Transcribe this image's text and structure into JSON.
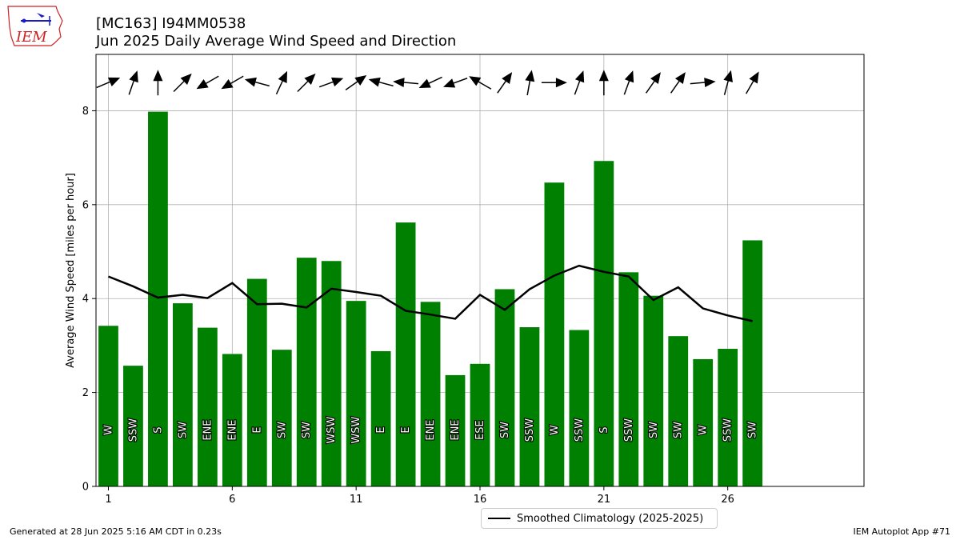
{
  "header": {
    "title_line1": "[MC163] I94MM0538",
    "title_line2": "Jun 2025 Daily Average Wind Speed and Direction"
  },
  "logo": {
    "text": "IEM"
  },
  "footer": {
    "left": "Generated at 28 Jun 2025 5:16 AM CDT in 0.23s",
    "right": "IEM Autoplot App #71"
  },
  "colors": {
    "bar": "#008000",
    "line": "#000000",
    "grid": "#b0b0b0",
    "logo_red": "#cc2222",
    "logo_blue": "#1a1acc"
  },
  "chart_data": {
    "type": "bar",
    "ylabel": "Average Wind Speed [miles per hour]",
    "xlabel": "",
    "xlim": [
      0.5,
      31.5
    ],
    "ylim": [
      0,
      9.2
    ],
    "yticks": [
      0,
      2,
      4,
      6,
      8
    ],
    "xticks": [
      1,
      6,
      11,
      16,
      21,
      26
    ],
    "grid": true,
    "legend_placement": "bottom-center",
    "days": [
      1,
      2,
      3,
      4,
      5,
      6,
      7,
      8,
      9,
      10,
      11,
      12,
      13,
      14,
      15,
      16,
      17,
      18,
      19,
      20,
      21,
      22,
      23,
      24,
      25,
      26,
      27
    ],
    "series": [
      {
        "name": "",
        "type": "bar",
        "values": [
          3.42,
          2.57,
          7.98,
          3.9,
          3.38,
          2.82,
          4.42,
          2.91,
          4.87,
          4.8,
          3.95,
          2.88,
          5.62,
          3.93,
          2.37,
          2.61,
          4.2,
          3.39,
          6.47,
          3.33,
          6.93,
          4.56,
          4.06,
          3.2,
          2.71,
          2.93,
          5.24
        ]
      },
      {
        "name": "Smoothed Climatology (2025-2025)",
        "type": "line",
        "values": [
          4.47,
          4.26,
          4.02,
          4.08,
          4.01,
          4.33,
          3.88,
          3.89,
          3.81,
          4.21,
          4.14,
          4.06,
          3.74,
          3.66,
          3.57,
          4.08,
          3.76,
          4.2,
          4.49,
          4.7,
          4.57,
          4.47,
          3.97,
          4.24,
          3.79,
          3.64,
          3.52
        ]
      }
    ],
    "directions": [
      "W",
      "SSW",
      "S",
      "SW",
      "ENE",
      "ENE",
      "E",
      "SW",
      "SW",
      "WSW",
      "WSW",
      "E",
      "E",
      "ENE",
      "ENE",
      "ESE",
      "SW",
      "SSW",
      "W",
      "SSW",
      "S",
      "SSW",
      "SW",
      "SW",
      "W",
      "SSW",
      "SW"
    ],
    "arrow_bearings_deg": [
      247,
      199,
      180,
      225,
      60,
      60,
      105,
      205,
      225,
      250,
      235,
      105,
      95,
      65,
      70,
      120,
      215,
      190,
      270,
      200,
      180,
      200,
      215,
      215,
      265,
      195,
      210
    ]
  }
}
